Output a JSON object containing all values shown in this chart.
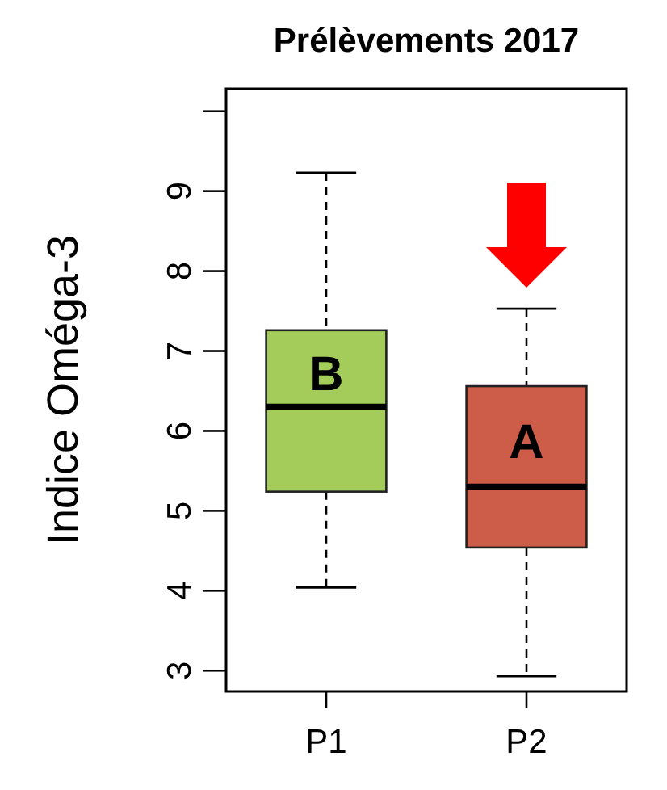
{
  "chart_data": {
    "type": "box",
    "title": "Prélèvements 2017",
    "ylabel": "Indice Oméga-3",
    "categories": [
      "P1",
      "P2"
    ],
    "colors": [
      "#a3cc5a",
      "#cd5c48"
    ],
    "boxes": [
      {
        "low": 4.04,
        "q1": 5.24,
        "median": 6.3,
        "q3": 7.26,
        "high": 9.23
      },
      {
        "low": 2.93,
        "q1": 4.54,
        "median": 5.3,
        "q3": 6.56,
        "high": 7.53
      }
    ],
    "ylim": [
      2.74,
      10.28
    ],
    "yticks": [
      3,
      4,
      5,
      6,
      7,
      8,
      9,
      {
        "value": 10,
        "label": null
      }
    ],
    "annotations": [
      "B",
      "A"
    ]
  }
}
